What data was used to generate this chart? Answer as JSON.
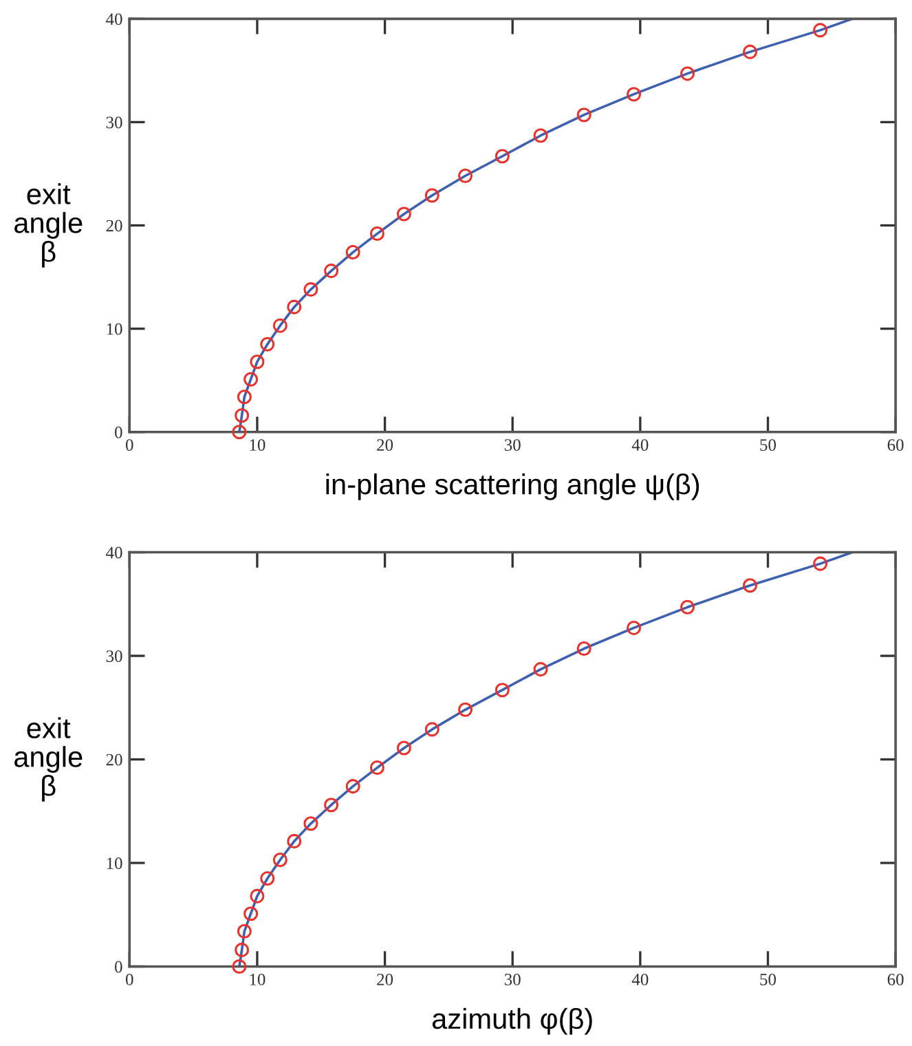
{
  "chart_data": [
    {
      "type": "line",
      "xlabel": "in-plane scattering angle ψ(β)",
      "ylabel": "exit\nangle\nβ",
      "xlim": [
        0,
        60
      ],
      "ylim": [
        0,
        40
      ],
      "xticks": [
        0,
        10,
        20,
        30,
        40,
        50,
        60
      ],
      "yticks": [
        0,
        10,
        20,
        30,
        40
      ],
      "series": [
        {
          "color": "#3f5fb0",
          "marker": "none",
          "x": [
            8.6,
            8.8,
            9.0,
            9.5,
            10.0,
            10.8,
            11.8,
            12.9,
            14.2,
            15.8,
            17.5,
            19.4,
            21.5,
            23.7,
            26.3,
            29.2,
            32.2,
            35.6,
            39.5,
            43.7,
            48.6,
            54.1,
            56.6
          ],
          "values": [
            0,
            1.6,
            3.4,
            5.1,
            6.8,
            8.5,
            10.3,
            12.1,
            13.8,
            15.6,
            17.4,
            19.2,
            21.1,
            22.9,
            24.8,
            26.7,
            28.7,
            30.7,
            32.7,
            34.7,
            36.8,
            38.9,
            40
          ]
        },
        {
          "type": "scatter",
          "color": "#e8312a",
          "marker": "circle",
          "x": [
            8.6,
            8.8,
            9.0,
            9.5,
            10.0,
            10.8,
            11.8,
            12.9,
            14.2,
            15.8,
            17.5,
            19.4,
            21.5,
            23.7,
            26.3,
            29.2,
            32.2,
            35.6,
            39.5,
            43.7,
            48.6,
            54.1
          ],
          "values": [
            0,
            1.6,
            3.4,
            5.1,
            6.8,
            8.5,
            10.3,
            12.1,
            13.8,
            15.6,
            17.4,
            19.2,
            21.1,
            22.9,
            24.8,
            26.7,
            28.7,
            30.7,
            32.7,
            34.7,
            36.8,
            38.9
          ]
        }
      ]
    },
    {
      "type": "line",
      "xlabel": "azimuth φ(β)",
      "ylabel": "exit\nangle\nβ",
      "xlim": [
        0,
        60
      ],
      "ylim": [
        0,
        40
      ],
      "xticks": [
        0,
        10,
        20,
        30,
        40,
        50,
        60
      ],
      "yticks": [
        0,
        10,
        20,
        30,
        40
      ],
      "series": [
        {
          "color": "#3f5fb0",
          "marker": "none",
          "x": [
            8.6,
            8.8,
            9.0,
            9.5,
            10.0,
            10.8,
            11.8,
            12.9,
            14.2,
            15.8,
            17.5,
            19.4,
            21.5,
            23.7,
            26.3,
            29.2,
            32.2,
            35.6,
            39.5,
            43.7,
            48.6,
            54.1,
            56.6
          ],
          "values": [
            0,
            1.6,
            3.4,
            5.1,
            6.8,
            8.5,
            10.3,
            12.1,
            13.8,
            15.6,
            17.4,
            19.2,
            21.1,
            22.9,
            24.8,
            26.7,
            28.7,
            30.7,
            32.7,
            34.7,
            36.8,
            38.9,
            40
          ]
        },
        {
          "type": "scatter",
          "color": "#e8312a",
          "marker": "circle",
          "x": [
            8.6,
            8.8,
            9.0,
            9.5,
            10.0,
            10.8,
            11.8,
            12.9,
            14.2,
            15.8,
            17.5,
            19.4,
            21.5,
            23.7,
            26.3,
            29.2,
            32.2,
            35.6,
            39.5,
            43.7,
            48.6,
            54.1
          ],
          "values": [
            0,
            1.6,
            3.4,
            5.1,
            6.8,
            8.5,
            10.3,
            12.1,
            13.8,
            15.6,
            17.4,
            19.2,
            21.1,
            22.9,
            24.8,
            26.7,
            28.7,
            30.7,
            32.7,
            34.7,
            36.8,
            38.9
          ]
        }
      ]
    }
  ]
}
